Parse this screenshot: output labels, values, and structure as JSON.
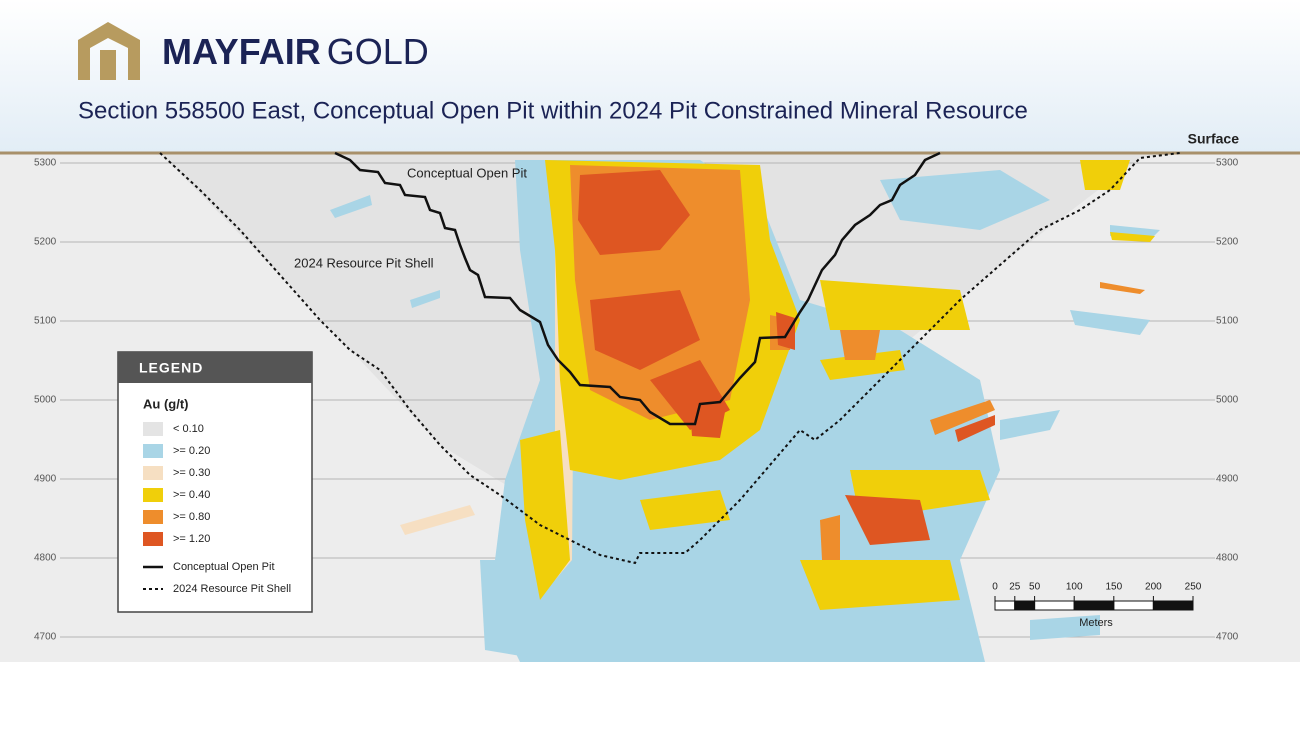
{
  "header": {
    "logo": {
      "brand": "MAYFAIR",
      "suffix": "GOLD"
    },
    "title": "Section 558500 East, Conceptual Open Pit within 2024 Pit Constrained Mineral Resource"
  },
  "section": {
    "surface_label": "Surface",
    "elevations": [
      5300,
      5200,
      5100,
      5000,
      4900,
      4800,
      4700
    ],
    "labels": {
      "open_pit": "Conceptual Open Pit",
      "pit_shell": "2024 Resource Pit Shell"
    }
  },
  "legend": {
    "title": "LEGEND",
    "unit": "Au (g/t)",
    "grades": [
      {
        "label": "<  0.10",
        "color": "#e4e4e4"
      },
      {
        "label": ">= 0.20",
        "color": "#a9d5e6"
      },
      {
        "label": ">= 0.30",
        "color": "#f6dfc2"
      },
      {
        "label": ">= 0.40",
        "color": "#f0cf0a"
      },
      {
        "label": ">= 0.80",
        "color": "#ee8d2c"
      },
      {
        "label": ">= 1.20",
        "color": "#de5622"
      }
    ],
    "lines": [
      {
        "label": "Conceptual Open Pit"
      },
      {
        "label": "2024 Resource Pit Shell"
      }
    ]
  },
  "scale_bar": {
    "ticks": [
      0,
      25,
      50,
      100,
      150,
      200,
      250
    ],
    "unit": "Meters"
  }
}
